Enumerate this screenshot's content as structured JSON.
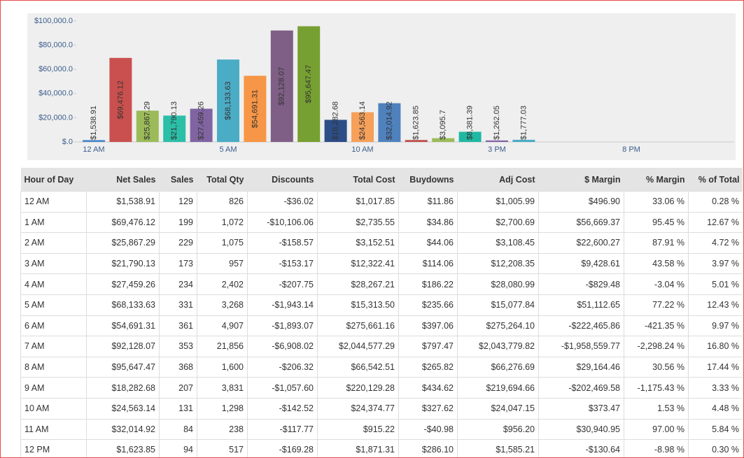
{
  "chart_data": {
    "type": "bar",
    "categories": [
      "12 AM",
      null,
      null,
      null,
      null,
      "5 AM",
      null,
      null,
      null,
      null,
      "10 AM",
      null,
      null,
      null,
      null,
      "3 PM",
      null,
      null,
      null,
      null,
      "8 PM",
      null,
      null,
      null
    ],
    "values": [
      1538.91,
      69476.12,
      25867.29,
      21790.13,
      27459.26,
      68133.63,
      54691.31,
      92128.07,
      95647.47,
      18282.68,
      24563.14,
      32014.92,
      1623.85,
      3095.7,
      8381.39,
      1262.05,
      1777.03,
      null,
      null,
      null,
      null,
      null,
      null,
      null
    ],
    "value_labels": [
      "$1,538.91",
      "$69,476.12",
      "$25,867.29",
      "$21,790.13",
      "$27,459.26",
      "$68,133.63",
      "$54,691.31",
      "$92,128.07",
      "$95,647.47",
      "$18,282.68",
      "$24,563.14",
      "$32,014.92",
      "$1,623.85",
      "$3,095.7",
      "$8,381.39",
      "$1,262.05",
      "$1,777.03",
      null,
      null,
      null,
      null,
      null,
      null,
      null
    ],
    "colors": [
      "#4a86c8",
      "#c9504e",
      "#9bbb59",
      "#2bbfa8",
      "#8064a2",
      "#4bacc6",
      "#f79646",
      "#7f5f86",
      "#77a032",
      "#2c4d86",
      "#f6a05a",
      "#4f81bd",
      "#c0504d",
      "#9bbb59",
      "#1fb8a3",
      "#8064a2",
      "#4bacc6",
      null,
      null,
      null,
      null,
      null,
      null,
      null
    ],
    "ylim": [
      0,
      100000
    ],
    "yticks": [
      {
        "value": 0,
        "label": "$.0"
      },
      {
        "value": 20000,
        "label": "$20,000.0"
      },
      {
        "value": 40000,
        "label": "$40,000.0"
      },
      {
        "value": 60000,
        "label": "$60,000.0"
      },
      {
        "value": 80000,
        "label": "$80,000.0"
      },
      {
        "value": 100000,
        "label": "$100,000.0"
      }
    ],
    "grid": false
  },
  "table": {
    "columns": [
      "Hour of Day",
      "Net Sales",
      "Sales",
      "Total Qty",
      "Discounts",
      "Total Cost",
      "Buydowns",
      "Adj Cost",
      "$ Margin",
      "% Margin",
      "% of Total"
    ],
    "rows": [
      [
        "12 AM",
        "$1,538.91",
        "129",
        "826",
        "-$36.02",
        "$1,017.85",
        "$11.86",
        "$1,005.99",
        "$496.90",
        "33.06 %",
        "0.28 %"
      ],
      [
        "1 AM",
        "$69,476.12",
        "199",
        "1,072",
        "-$10,106.06",
        "$2,735.55",
        "$34.86",
        "$2,700.69",
        "$56,669.37",
        "95.45 %",
        "12.67 %"
      ],
      [
        "2 AM",
        "$25,867.29",
        "229",
        "1,075",
        "-$158.57",
        "$3,152.51",
        "$44.06",
        "$3,108.45",
        "$22,600.27",
        "87.91 %",
        "4.72 %"
      ],
      [
        "3 AM",
        "$21,790.13",
        "173",
        "957",
        "-$153.17",
        "$12,322.41",
        "$114.06",
        "$12,208.35",
        "$9,428.61",
        "43.58 %",
        "3.97 %"
      ],
      [
        "4 AM",
        "$27,459.26",
        "234",
        "2,402",
        "-$207.75",
        "$28,267.21",
        "$186.22",
        "$28,080.99",
        "-$829.48",
        "-3.04 %",
        "5.01 %"
      ],
      [
        "5 AM",
        "$68,133.63",
        "331",
        "3,268",
        "-$1,943.14",
        "$15,313.50",
        "$235.66",
        "$15,077.84",
        "$51,112.65",
        "77.22 %",
        "12.43 %"
      ],
      [
        "6 AM",
        "$54,691.31",
        "361",
        "4,907",
        "-$1,893.07",
        "$275,661.16",
        "$397.06",
        "$275,264.10",
        "-$222,465.86",
        "-421.35 %",
        "9.97 %"
      ],
      [
        "7 AM",
        "$92,128.07",
        "353",
        "21,856",
        "-$6,908.02",
        "$2,044,577.29",
        "$797.47",
        "$2,043,779.82",
        "-$1,958,559.77",
        "-2,298.24 %",
        "16.80 %"
      ],
      [
        "8 AM",
        "$95,647.47",
        "368",
        "1,600",
        "-$206.32",
        "$66,542.51",
        "$265.82",
        "$66,276.69",
        "$29,164.46",
        "30.56 %",
        "17.44 %"
      ],
      [
        "9 AM",
        "$18,282.68",
        "207",
        "3,831",
        "-$1,057.60",
        "$220,129.28",
        "$434.62",
        "$219,694.66",
        "-$202,469.58",
        "-1,175.43 %",
        "3.33 %"
      ],
      [
        "10 AM",
        "$24,563.14",
        "131",
        "1,298",
        "-$142.52",
        "$24,374.77",
        "$327.62",
        "$24,047.15",
        "$373.47",
        "1.53 %",
        "4.48 %"
      ],
      [
        "11 AM",
        "$32,014.92",
        "84",
        "238",
        "-$117.77",
        "$915.22",
        "-$40.98",
        "$956.20",
        "$30,940.95",
        "97.00 %",
        "5.84 %"
      ],
      [
        "12 PM",
        "$1,623.85",
        "94",
        "517",
        "-$169.28",
        "$1,871.31",
        "$286.10",
        "$1,585.21",
        "-$130.64",
        "-8.98 %",
        "0.30 %"
      ]
    ]
  }
}
